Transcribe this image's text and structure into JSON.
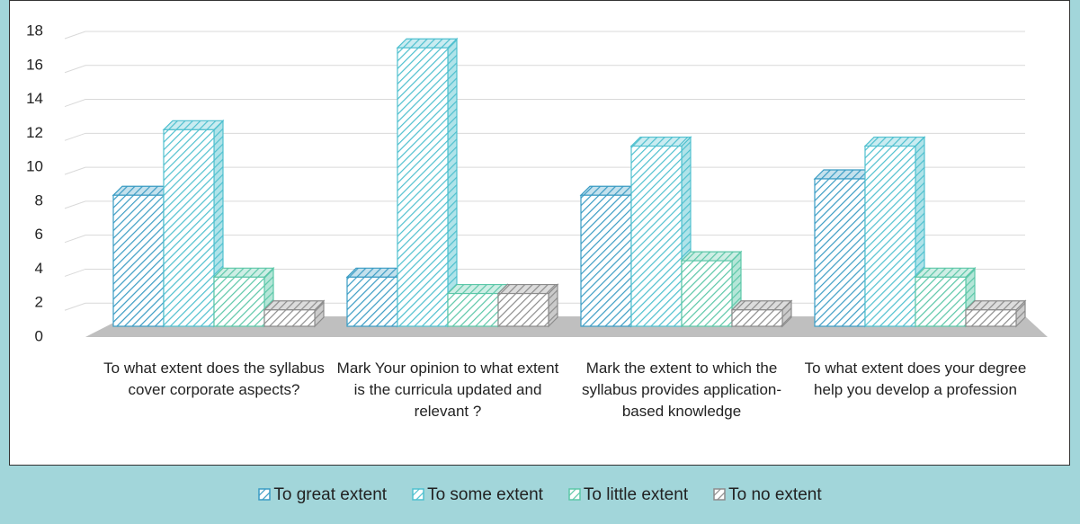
{
  "chart_data": {
    "type": "bar3d",
    "categories": [
      "To what extent does the syllabus cover corporate aspects?",
      "Mark Your opinion to what extent is the curricula updated and relevant ?",
      "Mark the extent to which the syllabus provides application-based knowledge",
      "To what extent does your degree help you develop a profession"
    ],
    "series": [
      {
        "name": "To great extent",
        "color": "#3a9cc4",
        "values": [
          8,
          3,
          8,
          9
        ]
      },
      {
        "name": "To some extent",
        "color": "#4fc0cf",
        "values": [
          12,
          17,
          11,
          11
        ]
      },
      {
        "name": "To little extent",
        "color": "#5cc7a8",
        "values": [
          3,
          2,
          4,
          3
        ]
      },
      {
        "name": "To no extent",
        "color": "#8c8c8c",
        "values": [
          1,
          2,
          1,
          1
        ]
      }
    ],
    "ylim": [
      0,
      18
    ],
    "yticks": [
      0,
      2,
      4,
      6,
      8,
      10,
      12,
      14,
      16,
      18
    ],
    "grid": true
  }
}
